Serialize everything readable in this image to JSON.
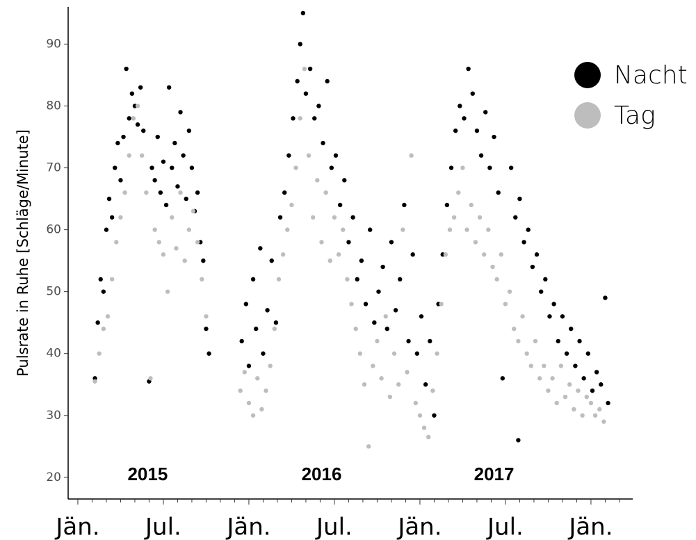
{
  "chart_data": {
    "type": "scatter",
    "ylabel": "Pulsrate in Ruhe [Schläge/Minute]",
    "xlim": [
      -0.68,
      38.93
    ],
    "ylim": [
      16.5,
      96.0
    ],
    "xticks": [
      {
        "value": 0,
        "label": "Jän."
      },
      {
        "value": 6,
        "label": "Jul."
      },
      {
        "value": 12,
        "label": "Jän."
      },
      {
        "value": 18,
        "label": "Jul."
      },
      {
        "value": 24,
        "label": "Jän."
      },
      {
        "value": 30,
        "label": "Jul."
      },
      {
        "value": 36,
        "label": "Jän."
      }
    ],
    "xminorticks": [
      1,
      2,
      3,
      4,
      5,
      7,
      8,
      9,
      10,
      11,
      13,
      14,
      15,
      16,
      17,
      19,
      20,
      21,
      22,
      23,
      25,
      26,
      27,
      28,
      29,
      31,
      32,
      33,
      34,
      35,
      37,
      38
    ],
    "yticks": [
      20,
      30,
      40,
      50,
      60,
      70,
      80,
      90
    ],
    "grid": false,
    "legend": "top right",
    "annotations": [
      {
        "text": "2015",
        "x": 4.9,
        "y": 20.3
      },
      {
        "text": "2016",
        "x": 17.1,
        "y": 20.3
      },
      {
        "text": "2017",
        "x": 29.2,
        "y": 20.3
      }
    ],
    "series": [
      {
        "name": "Nacht",
        "color": "#000000",
        "x": [
          1.2,
          1.4,
          1.6,
          1.8,
          2.0,
          2.2,
          2.4,
          2.6,
          2.8,
          3.0,
          3.2,
          3.4,
          3.6,
          3.8,
          4.0,
          4.2,
          4.4,
          4.6,
          5.0,
          5.2,
          5.4,
          5.6,
          5.8,
          6.0,
          6.2,
          6.4,
          6.6,
          6.8,
          7.0,
          7.2,
          7.4,
          7.6,
          7.8,
          8.0,
          8.2,
          8.4,
          8.6,
          8.8,
          9.0,
          9.2,
          11.5,
          11.8,
          12.0,
          12.3,
          12.5,
          12.8,
          13.0,
          13.3,
          13.6,
          13.9,
          14.2,
          14.5,
          14.8,
          15.1,
          15.4,
          15.6,
          15.8,
          16.0,
          16.3,
          16.6,
          16.9,
          17.2,
          17.5,
          17.8,
          18.1,
          18.4,
          18.7,
          19.0,
          19.3,
          19.6,
          19.9,
          20.2,
          20.5,
          20.8,
          21.1,
          21.4,
          21.7,
          22.0,
          22.3,
          22.6,
          22.9,
          23.2,
          23.5,
          23.8,
          24.1,
          24.4,
          24.7,
          25.0,
          25.3,
          25.6,
          25.9,
          26.2,
          26.5,
          26.8,
          27.1,
          27.4,
          27.7,
          28.0,
          28.3,
          28.6,
          28.9,
          29.2,
          29.5,
          29.8,
          30.9,
          30.4,
          30.7,
          31.0,
          31.3,
          31.6,
          31.9,
          32.2,
          32.5,
          32.8,
          33.1,
          33.4,
          33.7,
          34.0,
          34.3,
          34.6,
          34.9,
          35.2,
          35.5,
          35.8,
          36.1,
          36.4,
          36.7,
          37.0,
          37.2
        ],
        "values": [
          36,
          45,
          52,
          50,
          60,
          65,
          62,
          70,
          74,
          68,
          75,
          86,
          78,
          82,
          80,
          77,
          83,
          76,
          35.5,
          70,
          68,
          75,
          66,
          71,
          64,
          83,
          70,
          74,
          67,
          79,
          72,
          65,
          76,
          70,
          63,
          66,
          58,
          55,
          44,
          40,
          42,
          48,
          38,
          52,
          44,
          57,
          40,
          47,
          55,
          45,
          62,
          66,
          72,
          78,
          84,
          90,
          95,
          82,
          86,
          78,
          80,
          74,
          84,
          70,
          72,
          64,
          68,
          58,
          62,
          52,
          55,
          48,
          60,
          45,
          50,
          54,
          44,
          58,
          47,
          52,
          64,
          42,
          56,
          40,
          46,
          35,
          42,
          30,
          48,
          56,
          64,
          70,
          76,
          80,
          78,
          86,
          82,
          76,
          72,
          79,
          70,
          75,
          66,
          36,
          26,
          70,
          62,
          65,
          58,
          60,
          54,
          56,
          50,
          52,
          46,
          48,
          42,
          46,
          40,
          44,
          38,
          42,
          36,
          40,
          34,
          37,
          35,
          49,
          32
        ]
      },
      {
        "name": "Tag",
        "color": "#bdbdbd",
        "x": [
          1.2,
          1.5,
          1.8,
          2.1,
          2.4,
          2.7,
          3.0,
          3.3,
          3.6,
          3.9,
          4.2,
          4.5,
          4.8,
          5.1,
          5.4,
          5.7,
          6.0,
          6.3,
          6.6,
          6.9,
          7.2,
          7.5,
          7.8,
          8.1,
          8.4,
          8.7,
          9.0,
          11.4,
          11.7,
          12.0,
          12.3,
          12.6,
          12.9,
          13.2,
          13.5,
          13.8,
          14.1,
          14.4,
          14.7,
          15.0,
          15.3,
          15.6,
          15.9,
          16.2,
          16.5,
          16.8,
          17.1,
          17.4,
          17.7,
          18.0,
          18.3,
          18.6,
          18.9,
          19.2,
          19.5,
          19.8,
          20.1,
          20.4,
          20.7,
          21.0,
          21.3,
          21.6,
          21.9,
          22.2,
          22.5,
          22.8,
          23.1,
          23.4,
          23.7,
          24.0,
          24.3,
          24.6,
          24.9,
          25.2,
          25.5,
          25.8,
          26.1,
          26.4,
          26.7,
          27.0,
          27.3,
          27.6,
          27.9,
          28.2,
          28.5,
          28.8,
          29.1,
          29.4,
          29.7,
          30.0,
          30.3,
          30.6,
          30.9,
          31.2,
          31.5,
          31.8,
          32.1,
          32.4,
          32.7,
          33.0,
          33.3,
          33.6,
          33.9,
          34.2,
          34.5,
          34.8,
          35.1,
          35.4,
          35.7,
          36.0,
          36.3,
          36.6,
          36.9
        ],
        "values": [
          35.5,
          40,
          44,
          46,
          52,
          58,
          62,
          66,
          72,
          78,
          80,
          72,
          66,
          36,
          60,
          58,
          56,
          50,
          62,
          57,
          66,
          55,
          60,
          63,
          58,
          52,
          46,
          34,
          37,
          32,
          30,
          36,
          31,
          34,
          38,
          44,
          52,
          56,
          60,
          64,
          70,
          78,
          86,
          72,
          62,
          68,
          58,
          66,
          55,
          62,
          56,
          60,
          52,
          48,
          44,
          40,
          35,
          25,
          38,
          42,
          36,
          46,
          33,
          40,
          35,
          60,
          37,
          72,
          32,
          30,
          28,
          26.5,
          34,
          40,
          48,
          56,
          60,
          62,
          66,
          70,
          60,
          64,
          58,
          62,
          56,
          60,
          54,
          52,
          56,
          48,
          50,
          44,
          42,
          46,
          40,
          38,
          42,
          36,
          38,
          34,
          36,
          32,
          38,
          33,
          35,
          31,
          34,
          30,
          33,
          32,
          30,
          31,
          29
        ]
      }
    ]
  }
}
